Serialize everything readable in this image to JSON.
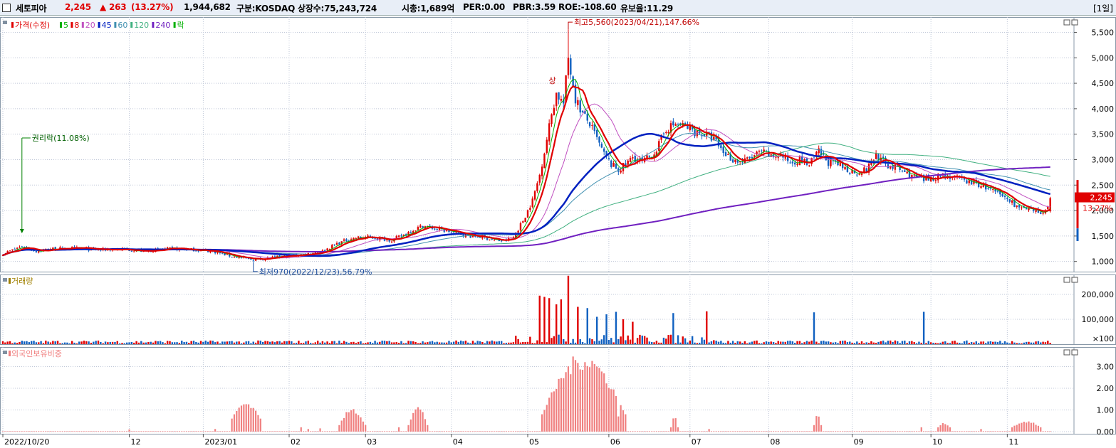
{
  "header": {
    "name": "세토피아",
    "price": "2,245",
    "change": "▲ 263",
    "change_pct": "(13.27%)",
    "volume": "1,944,682",
    "market": "구분:KOSDAQ",
    "listed": "상장수:75,243,724",
    "mcap": "시총:1,689억",
    "per": "PER:0.00",
    "pbr": "PBR:3.59",
    "roe": "ROE:-108.60",
    "float": "유보율:11.29",
    "period": "[1일]"
  },
  "colors": {
    "up": "#e00000",
    "down": "#1060c0",
    "ma5": "#00b000",
    "ma8": "#e00000",
    "ma20": "#c050c0",
    "ma45": "#0020c0",
    "ma60": "#4090b0",
    "ma120": "#40b080",
    "ma240": "#7020c0",
    "foreign": "#f08080"
  },
  "chart_data": [
    {
      "type": "candlestick",
      "panel": "price",
      "legend": [
        "가격(수정)",
        "5",
        "8",
        "20",
        "45",
        "60",
        "120",
        "240",
        "락"
      ],
      "y_ticks": [
        "5,500",
        "5,000",
        "4,500",
        "4,000",
        "3,500",
        "3,000",
        "2,500",
        "2,000",
        "1,500",
        "1,000"
      ],
      "ylim": [
        800,
        5800
      ],
      "last_price_label": "2,245",
      "last_pct_label": "13.27%",
      "annotations": {
        "high": "최고5,560(2023/04/21),147.66%",
        "low": "최저970(2022/12/23),56.79%",
        "rights": "권리락(11.08%)",
        "upper_limit": "상"
      },
      "close_anchors": [
        [
          0,
          1150
        ],
        [
          8,
          1300
        ],
        [
          14,
          1200
        ],
        [
          20,
          1250
        ],
        [
          30,
          1260
        ],
        [
          40,
          1230
        ],
        [
          50,
          1240
        ],
        [
          60,
          1200
        ],
        [
          70,
          1250
        ],
        [
          80,
          1230
        ],
        [
          88,
          1200
        ],
        [
          96,
          1100
        ],
        [
          104,
          1040
        ],
        [
          110,
          1060
        ],
        [
          118,
          1100
        ],
        [
          126,
          1140
        ],
        [
          134,
          1200
        ],
        [
          140,
          1350
        ],
        [
          146,
          1450
        ],
        [
          152,
          1480
        ],
        [
          158,
          1450
        ],
        [
          163,
          1420
        ],
        [
          167,
          1500
        ],
        [
          171,
          1600
        ],
        [
          176,
          1700
        ],
        [
          181,
          1650
        ],
        [
          186,
          1600
        ],
        [
          191,
          1550
        ],
        [
          196,
          1500
        ],
        [
          201,
          1480
        ],
        [
          206,
          1420
        ],
        [
          210,
          1400
        ],
        [
          214,
          1480
        ],
        [
          218,
          1800
        ],
        [
          222,
          2200
        ],
        [
          225,
          2700
        ],
        [
          228,
          3400
        ],
        [
          230,
          3900
        ],
        [
          232,
          4300
        ],
        [
          235,
          4100
        ],
        [
          237,
          5000
        ],
        [
          240,
          4200
        ],
        [
          243,
          3900
        ],
        [
          246,
          3700
        ],
        [
          249,
          3400
        ],
        [
          252,
          3100
        ],
        [
          255,
          2900
        ],
        [
          258,
          2800
        ],
        [
          261,
          2900
        ],
        [
          264,
          3050
        ],
        [
          268,
          2950
        ],
        [
          271,
          3050
        ],
        [
          274,
          3200
        ],
        [
          278,
          3600
        ],
        [
          282,
          3700
        ],
        [
          286,
          3650
        ],
        [
          290,
          3550
        ],
        [
          294,
          3500
        ],
        [
          298,
          3400
        ],
        [
          302,
          3150
        ],
        [
          306,
          3000
        ],
        [
          310,
          2950
        ],
        [
          314,
          3050
        ],
        [
          318,
          3150
        ],
        [
          322,
          3050
        ],
        [
          326,
          3100
        ],
        [
          330,
          2950
        ],
        [
          334,
          3000
        ],
        [
          338,
          2900
        ],
        [
          342,
          3150
        ],
        [
          346,
          2950
        ],
        [
          350,
          2900
        ],
        [
          354,
          2800
        ],
        [
          358,
          2750
        ],
        [
          362,
          2800
        ],
        [
          366,
          3100
        ],
        [
          370,
          2900
        ],
        [
          374,
          2850
        ],
        [
          378,
          2750
        ],
        [
          382,
          2650
        ],
        [
          386,
          2600
        ],
        [
          390,
          2650
        ],
        [
          394,
          2700
        ],
        [
          398,
          2650
        ],
        [
          402,
          2600
        ],
        [
          406,
          2550
        ],
        [
          410,
          2500
        ],
        [
          414,
          2400
        ],
        [
          418,
          2300
        ],
        [
          422,
          2200
        ],
        [
          426,
          2050
        ],
        [
          430,
          2000
        ],
        [
          434,
          1960
        ],
        [
          437,
          1982
        ],
        [
          439,
          2245
        ]
      ]
    },
    {
      "type": "bar",
      "panel": "volume",
      "legend": [
        "거래량"
      ],
      "y_ticks": [
        "200,000",
        "100,000",
        "×100"
      ],
      "ylim": [
        0,
        280000
      ],
      "spikes": [
        [
          225,
          195000
        ],
        [
          227,
          190000
        ],
        [
          229,
          185000
        ],
        [
          232,
          160000
        ],
        [
          234,
          180000
        ],
        [
          237,
          275000
        ],
        [
          241,
          150000
        ],
        [
          245,
          145000
        ],
        [
          249,
          110000
        ],
        [
          253,
          120000
        ],
        [
          257,
          130000
        ],
        [
          260,
          100000
        ],
        [
          264,
          90000
        ],
        [
          281,
          125000
        ],
        [
          295,
          132000
        ],
        [
          340,
          128000
        ],
        [
          386,
          130000
        ]
      ]
    },
    {
      "type": "bar",
      "panel": "foreign_ratio",
      "legend": [
        "외국인보유비중"
      ],
      "y_ticks": [
        "3.00",
        "2.00",
        "1.00",
        "0.00"
      ],
      "ylim": [
        -0.1,
        3.9
      ],
      "segments": [
        [
          96,
          108,
          0.6,
          1.4
        ],
        [
          141,
          152,
          0.3,
          1.1
        ],
        [
          170,
          178,
          0.3,
          1.2
        ],
        [
          226,
          261,
          0.8,
          3.7
        ],
        [
          280,
          283,
          0.2,
          0.7
        ],
        [
          340,
          343,
          0.3,
          0.8
        ],
        [
          392,
          397,
          0.2,
          0.4
        ],
        [
          423,
          435,
          0.2,
          0.5
        ]
      ]
    }
  ],
  "x_labels": [
    {
      "i": 0,
      "label": "2022/10/20"
    },
    {
      "i": 53,
      "label": "12"
    },
    {
      "i": 84,
      "label": "2023/01"
    },
    {
      "i": 120,
      "label": "02"
    },
    {
      "i": 152,
      "label": "03"
    },
    {
      "i": 188,
      "label": "04"
    },
    {
      "i": 220,
      "label": "05"
    },
    {
      "i": 254,
      "label": "06"
    },
    {
      "i": 288,
      "label": "07"
    },
    {
      "i": 321,
      "label": "08"
    },
    {
      "i": 356,
      "label": "09"
    },
    {
      "i": 389,
      "label": "10"
    },
    {
      "i": 421,
      "label": "11"
    }
  ]
}
